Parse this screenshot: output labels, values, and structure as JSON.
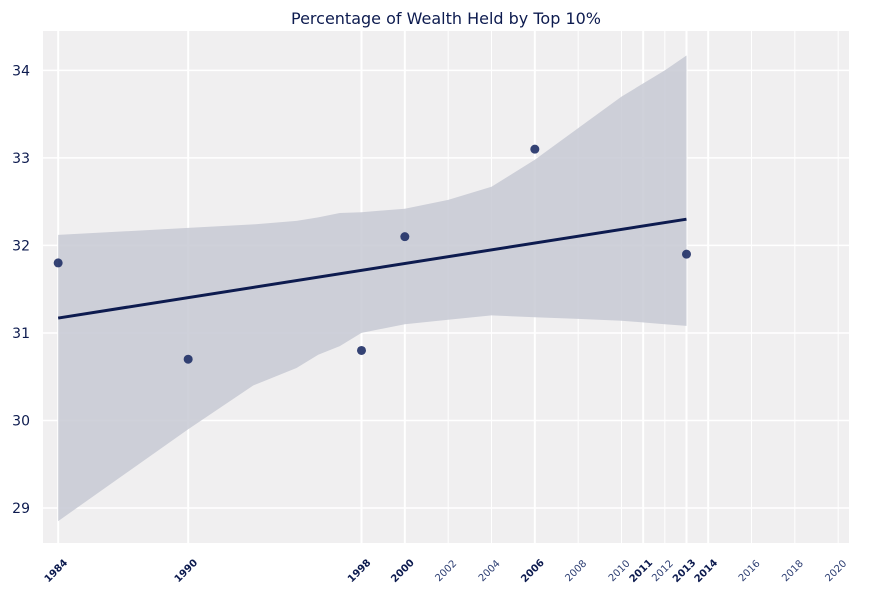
{
  "chart_data": {
    "type": "scatter",
    "title": "Percentage of Wealth Held by Top 10%",
    "xlabel": "",
    "ylabel": "",
    "xlim": [
      1983.3,
      2020.5
    ],
    "ylim": [
      28.6,
      34.45
    ],
    "yticks": [
      29,
      30,
      31,
      32,
      33,
      34
    ],
    "xticks_major": [
      1984,
      1990,
      1998,
      2000,
      2006,
      2011,
      2013,
      2014
    ],
    "xticks_minor": [
      2002,
      2004,
      2008,
      2010,
      2012,
      2016,
      2018,
      2020
    ],
    "grid": true,
    "legend": "none",
    "series": [
      {
        "points": [
          {
            "x": 1984,
            "y": 31.8
          },
          {
            "x": 1990,
            "y": 30.7
          },
          {
            "x": 1998,
            "y": 30.8
          },
          {
            "x": 2000,
            "y": 32.1
          },
          {
            "x": 2006,
            "y": 33.1
          },
          {
            "x": 2013,
            "y": 31.9
          }
        ]
      }
    ],
    "regression": {
      "x": [
        1984,
        2013
      ],
      "y": [
        31.17,
        32.3
      ]
    },
    "confidence_band": {
      "x": [
        1984,
        1990,
        1993,
        1995,
        1996,
        1997,
        1998,
        2000,
        2002,
        2004,
        2006,
        2008,
        2010,
        2012,
        2013
      ],
      "upper": [
        32.12,
        32.2,
        32.24,
        32.28,
        32.32,
        32.37,
        32.38,
        32.42,
        32.52,
        32.67,
        32.98,
        33.34,
        33.7,
        34.0,
        34.17
      ],
      "lower": [
        28.85,
        29.9,
        30.4,
        30.6,
        30.75,
        30.85,
        31.0,
        31.1,
        31.15,
        31.2,
        31.18,
        31.16,
        31.14,
        31.1,
        31.08
      ]
    },
    "colors": {
      "background": "#f0eff0",
      "grid": "#ffffff",
      "point": "#1f2f66",
      "line": "#0d1b4f",
      "band": "#c7c9d4",
      "text": "#0d1b4f"
    }
  }
}
